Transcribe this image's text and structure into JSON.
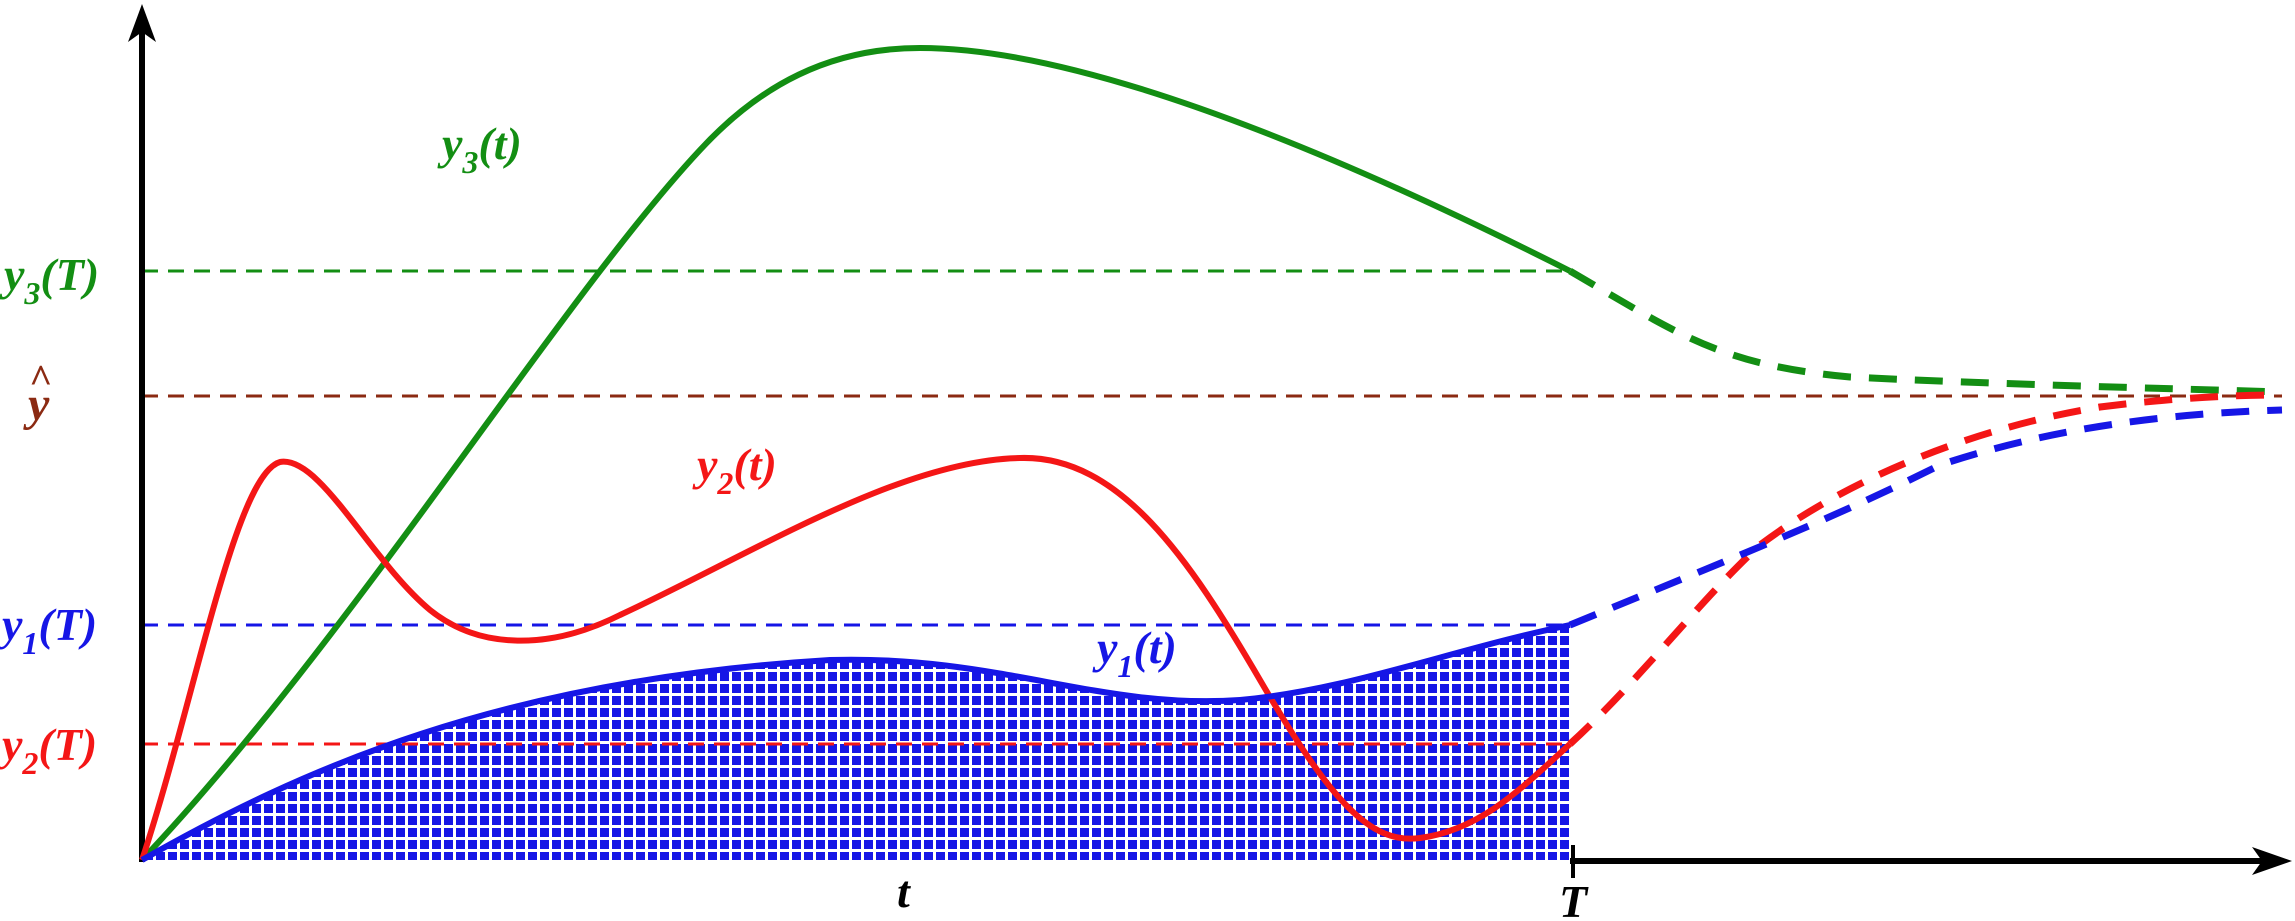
{
  "colors": {
    "green": "#138e13",
    "red": "#f41616",
    "blue": "#1616e6",
    "brown": "#8b2a12",
    "axis": "#000000"
  },
  "labels": {
    "y3_curve": {
      "base": "y",
      "sub": "3",
      "tail": "(t)"
    },
    "y2_curve": {
      "base": "y",
      "sub": "2",
      "tail": "(t)"
    },
    "y1_curve": {
      "base": "y",
      "sub": "1",
      "tail": "(t)"
    },
    "y3_T": {
      "base": "y",
      "sub": "3",
      "tail": "(T)"
    },
    "y1_T": {
      "base": "y",
      "sub": "1",
      "tail": "(T)"
    },
    "y2_T": {
      "base": "y",
      "sub": "2",
      "tail": "(T)"
    },
    "y_hat": {
      "base": "y",
      "hat": "^"
    },
    "x_t": "t",
    "x_T": "T"
  },
  "icons": [
    "y-axis-arrow-icon",
    "x-axis-arrow-icon"
  ]
}
